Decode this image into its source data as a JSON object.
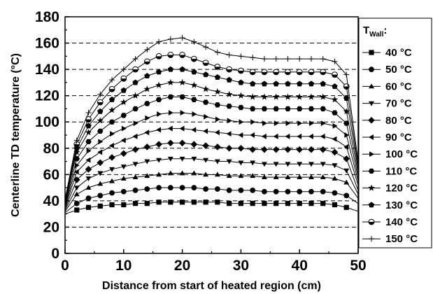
{
  "chart_data": {
    "type": "line",
    "xlabel": "Distance from start of heated region (cm)",
    "ylabel": "Centerline TD temperature (°C)",
    "xlim": [
      0,
      50
    ],
    "ylim": [
      0,
      180
    ],
    "x_ticks": [
      "0",
      "10",
      "20",
      "30",
      "40",
      "50"
    ],
    "y_ticks": [
      "0",
      "20",
      "40",
      "60",
      "80",
      "100",
      "120",
      "140",
      "160",
      "180"
    ],
    "grid": "horizontal dashed",
    "legend_position": "right",
    "legend_title": "T",
    "legend_title_sub": "Wall",
    "legend_title_suffix": ":",
    "x": [
      0,
      2,
      4,
      6,
      8,
      10,
      12,
      14,
      16,
      18,
      20,
      22,
      24,
      26,
      28,
      30,
      32,
      34,
      36,
      38,
      40,
      42,
      44,
      46,
      48,
      50
    ],
    "series": [
      {
        "name": "40 °C",
        "marker": "square",
        "values": [
          30,
          33,
          35,
          36,
          37,
          37,
          38,
          38,
          39,
          39,
          39,
          39,
          39,
          39,
          38,
          38,
          38,
          38,
          38,
          38,
          38,
          38,
          38,
          37,
          35,
          32
        ]
      },
      {
        "name": "50 °C",
        "marker": "circle",
        "values": [
          31,
          38,
          42,
          44,
          46,
          47,
          48,
          49,
          50,
          50,
          50,
          50,
          49,
          49,
          48,
          48,
          48,
          47,
          47,
          47,
          47,
          47,
          47,
          46,
          44,
          38
        ]
      },
      {
        "name": "60 °C",
        "marker": "triangle-up",
        "values": [
          32,
          45,
          50,
          53,
          55,
          57,
          58,
          59,
          60,
          61,
          61,
          61,
          60,
          60,
          59,
          59,
          59,
          58,
          58,
          58,
          58,
          58,
          58,
          57,
          54,
          42
        ]
      },
      {
        "name": "70 °C",
        "marker": "triangle-down",
        "values": [
          33,
          50,
          57,
          61,
          64,
          66,
          68,
          70,
          71,
          72,
          72,
          72,
          71,
          70,
          70,
          69,
          69,
          68,
          68,
          68,
          68,
          68,
          68,
          67,
          63,
          45
        ]
      },
      {
        "name": "80 °C",
        "marker": "diamond",
        "values": [
          34,
          56,
          64,
          69,
          73,
          76,
          79,
          81,
          83,
          84,
          84,
          83,
          82,
          81,
          80,
          80,
          79,
          79,
          79,
          79,
          79,
          79,
          79,
          77,
          72,
          48
        ]
      },
      {
        "name": "90 °C",
        "marker": "triangle-left",
        "values": [
          35,
          62,
          71,
          77,
          82,
          86,
          89,
          92,
          94,
          95,
          95,
          94,
          93,
          92,
          91,
          90,
          90,
          89,
          89,
          89,
          89,
          89,
          89,
          87,
          81,
          52
        ]
      },
      {
        "name": "100 °C",
        "marker": "triangle-right",
        "values": [
          36,
          67,
          78,
          85,
          91,
          95,
          99,
          103,
          106,
          107,
          107,
          106,
          104,
          102,
          101,
          100,
          100,
          99,
          99,
          99,
          99,
          99,
          99,
          97,
          90,
          55
        ]
      },
      {
        "name": "110 °C",
        "marker": "hexagon",
        "values": [
          37,
          72,
          85,
          93,
          100,
          105,
          110,
          114,
          117,
          119,
          119,
          117,
          115,
          113,
          112,
          111,
          110,
          110,
          110,
          110,
          110,
          110,
          110,
          107,
          99,
          58
        ]
      },
      {
        "name": "120 °C",
        "marker": "star",
        "values": [
          38,
          77,
          92,
          101,
          109,
          115,
          120,
          125,
          128,
          130,
          130,
          128,
          125,
          123,
          121,
          120,
          119,
          119,
          119,
          119,
          119,
          119,
          119,
          117,
          108,
          61
        ]
      },
      {
        "name": "130 °C",
        "marker": "pentagon",
        "values": [
          39,
          80,
          97,
          108,
          117,
          124,
          130,
          135,
          138,
          140,
          140,
          138,
          136,
          134,
          132,
          130,
          129,
          129,
          129,
          129,
          129,
          129,
          129,
          127,
          118,
          64
        ]
      },
      {
        "name": "140 °C",
        "marker": "circle-half",
        "values": [
          40,
          83,
          102,
          115,
          125,
          133,
          140,
          146,
          150,
          151,
          151,
          148,
          145,
          142,
          140,
          139,
          138,
          138,
          138,
          138,
          138,
          138,
          138,
          136,
          127,
          67
        ]
      },
      {
        "name": "150 °C",
        "marker": "plus",
        "values": [
          41,
          86,
          107,
          121,
          132,
          140,
          148,
          155,
          161,
          163,
          164,
          161,
          157,
          153,
          151,
          150,
          149,
          148,
          148,
          148,
          148,
          148,
          148,
          146,
          136,
          70
        ]
      }
    ]
  }
}
